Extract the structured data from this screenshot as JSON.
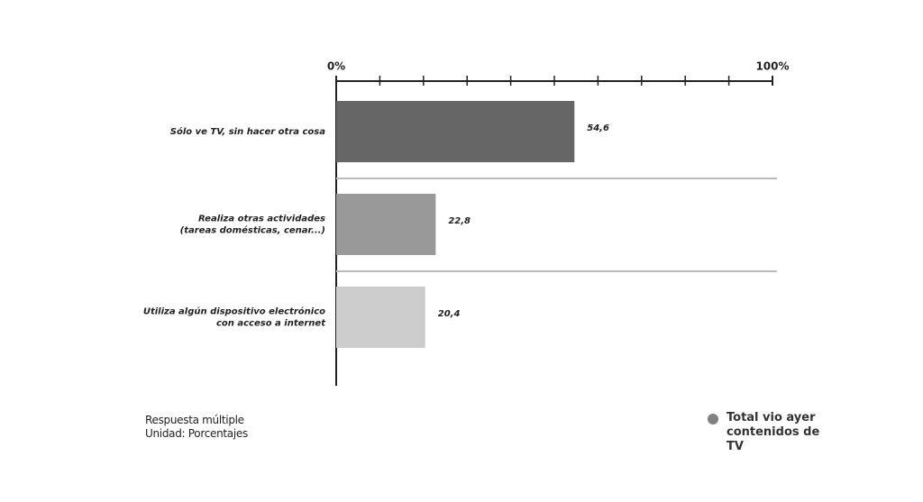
{
  "chart_data": {
    "type": "bar",
    "orientation": "horizontal",
    "categories": [
      [
        "Sólo ve TV, sin hacer otra cosa"
      ],
      [
        "Realiza otras actividades",
        "(tareas domésticas, cenar...)"
      ],
      [
        "Utiliza algún dispositivo electrónico",
        "con acceso a internet"
      ]
    ],
    "series": [
      {
        "name": "Total vio ayer contenidos de TV",
        "color": "#808080",
        "values": [
          54.6,
          22.8,
          20.4
        ],
        "value_labels": [
          "54,6",
          "22,8",
          "20,4"
        ],
        "colors": [
          "#666666",
          "#999999",
          "#cccccc"
        ]
      }
    ],
    "xlim": [
      0,
      100
    ],
    "xticks": [
      {
        "value": 0,
        "label": "0%"
      },
      {
        "value": 100,
        "label": "100%"
      }
    ],
    "xminorticks": [
      10,
      20,
      30,
      40,
      50,
      60,
      70,
      80,
      90
    ],
    "notes": [
      "Respuesta múltiple",
      "Unidad: Porcentajes"
    ]
  }
}
